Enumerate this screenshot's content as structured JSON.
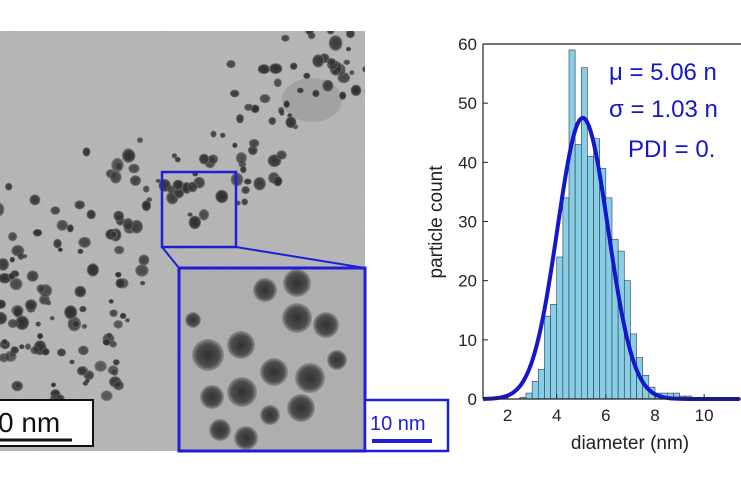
{
  "micrograph": {
    "scalebar_main_label": "0 nm",
    "scalebar_inset_label": "10 nm",
    "highlight_color": "#1f1fd6"
  },
  "chart_data": {
    "type": "bar",
    "xlabel": "diameter (nm)",
    "ylabel": "particle count",
    "xlim": [
      1,
      11.5
    ],
    "ylim": [
      0,
      60
    ],
    "xticks": [
      2,
      4,
      6,
      8,
      10
    ],
    "yticks": [
      0,
      10,
      20,
      30,
      40,
      50,
      60
    ],
    "grid": false,
    "bar_color": "#87cfe8",
    "fit_color": "#1616cc",
    "bin_width": 0.25,
    "bins_start": [
      2.5,
      2.75,
      3.0,
      3.25,
      3.5,
      3.75,
      4.0,
      4.25,
      4.5,
      4.75,
      5.0,
      5.25,
      5.5,
      5.75,
      6.0,
      6.25,
      6.5,
      6.75,
      7.0,
      7.25,
      7.5,
      7.75,
      8.0,
      8.25,
      8.5,
      8.75,
      9.0,
      9.25,
      9.5,
      9.75,
      10.0,
      10.25
    ],
    "counts": [
      0.3,
      1,
      3,
      5,
      14,
      16,
      24,
      34,
      59,
      43,
      56,
      41,
      44,
      39,
      34,
      27,
      25,
      20,
      11,
      7,
      4,
      2,
      1,
      1,
      1,
      1,
      0.5,
      0.5,
      0,
      0,
      0.2,
      0
    ],
    "fit": {
      "type": "gaussian",
      "mean": 5.06,
      "sigma": 1.03,
      "peak": 47.5
    },
    "annotations": {
      "mu": "μ = 5.06 n",
      "sigma": "σ = 1.03 n",
      "pdi": "PDI = 0."
    },
    "x_tick_labels": [
      "2",
      "4",
      "6",
      "8",
      "10"
    ],
    "y_tick_labels": [
      "0",
      "10",
      "20",
      "30",
      "40",
      "50",
      "60"
    ]
  }
}
